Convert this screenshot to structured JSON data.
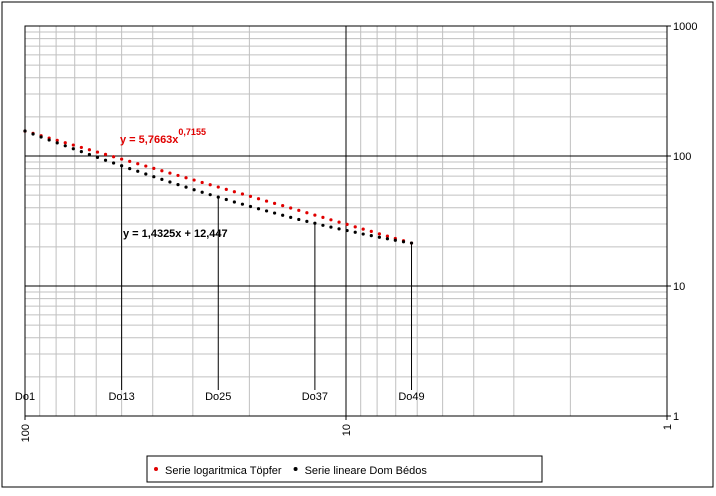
{
  "chart_data": {
    "type": "scatter",
    "x": [
      100,
      94.39,
      89.09,
      84.09,
      79.37,
      74.92,
      70.71,
      66.74,
      63.0,
      59.46,
      56.12,
      52.97,
      50,
      47.19,
      44.54,
      42.04,
      39.69,
      37.46,
      35.36,
      33.37,
      31.5,
      29.73,
      28.06,
      26.49,
      25,
      23.6,
      22.27,
      21.02,
      19.84,
      18.73,
      17.68,
      16.69,
      15.75,
      14.87,
      14.03,
      13.24,
      12.5,
      11.8,
      11.14,
      10.51,
      9.92,
      9.36,
      8.84,
      8.34,
      7.87,
      7.43,
      7.02,
      6.62,
      6.25
    ],
    "series": [
      {
        "name": "Serie logaritmica Töpfer",
        "color": "#e00000",
        "values": [
          155.5,
          149.2,
          143.2,
          137.4,
          131.8,
          126.5,
          121.4,
          116.4,
          111.7,
          107.2,
          102.9,
          98.7,
          94.7,
          90.9,
          87.2,
          83.7,
          80.3,
          77.0,
          73.9,
          70.9,
          68.0,
          65.3,
          62.6,
          60.1,
          57.7,
          55.4,
          53.1,
          51.0,
          48.9,
          46.9,
          45.0,
          43.2,
          41.5,
          39.8,
          38.2,
          36.6,
          35.1,
          33.7,
          32.3,
          31.0,
          29.8,
          28.5,
          27.4,
          26.3,
          25.2,
          24.2,
          23.2,
          22.3,
          21.4
        ]
      },
      {
        "name": "Serie lineare Dom Bédos",
        "color": "#000000",
        "values": [
          155.7,
          147.7,
          140.1,
          132.9,
          126.1,
          119.8,
          113.7,
          108.0,
          102.7,
          97.6,
          92.8,
          88.3,
          84.1,
          80.0,
          76.3,
          72.7,
          69.3,
          66.1,
          63.1,
          60.2,
          57.6,
          55.0,
          52.6,
          50.4,
          48.3,
          46.3,
          44.3,
          42.6,
          40.9,
          39.3,
          37.8,
          36.4,
          35.0,
          33.7,
          32.5,
          31.4,
          30.4,
          29.3,
          28.4,
          27.5,
          26.7,
          25.9,
          25.1,
          24.4,
          23.7,
          23.1,
          22.5,
          21.9,
          21.4
        ]
      }
    ],
    "xlim": [
      100,
      1
    ],
    "xticks": [
      100,
      10,
      1
    ],
    "x_scale": "log",
    "ylim": [
      1,
      1000
    ],
    "yticks": [
      1,
      10,
      100,
      1000
    ],
    "y_scale": "log",
    "grid": true,
    "legend": "bottom",
    "equations": [
      {
        "text": "y = 5,7663x",
        "exponent": "0,7155",
        "color": "#e00000"
      },
      {
        "text": "y = 1,4325x + 12,447",
        "color": "#000000"
      }
    ],
    "annotations": [
      {
        "text": "Do1",
        "x": 100
      },
      {
        "text": "Do13",
        "x": 50
      },
      {
        "text": "Do25",
        "x": 25
      },
      {
        "text": "Do37",
        "x": 12.5
      },
      {
        "text": "Do49",
        "x": 6.25
      }
    ]
  }
}
